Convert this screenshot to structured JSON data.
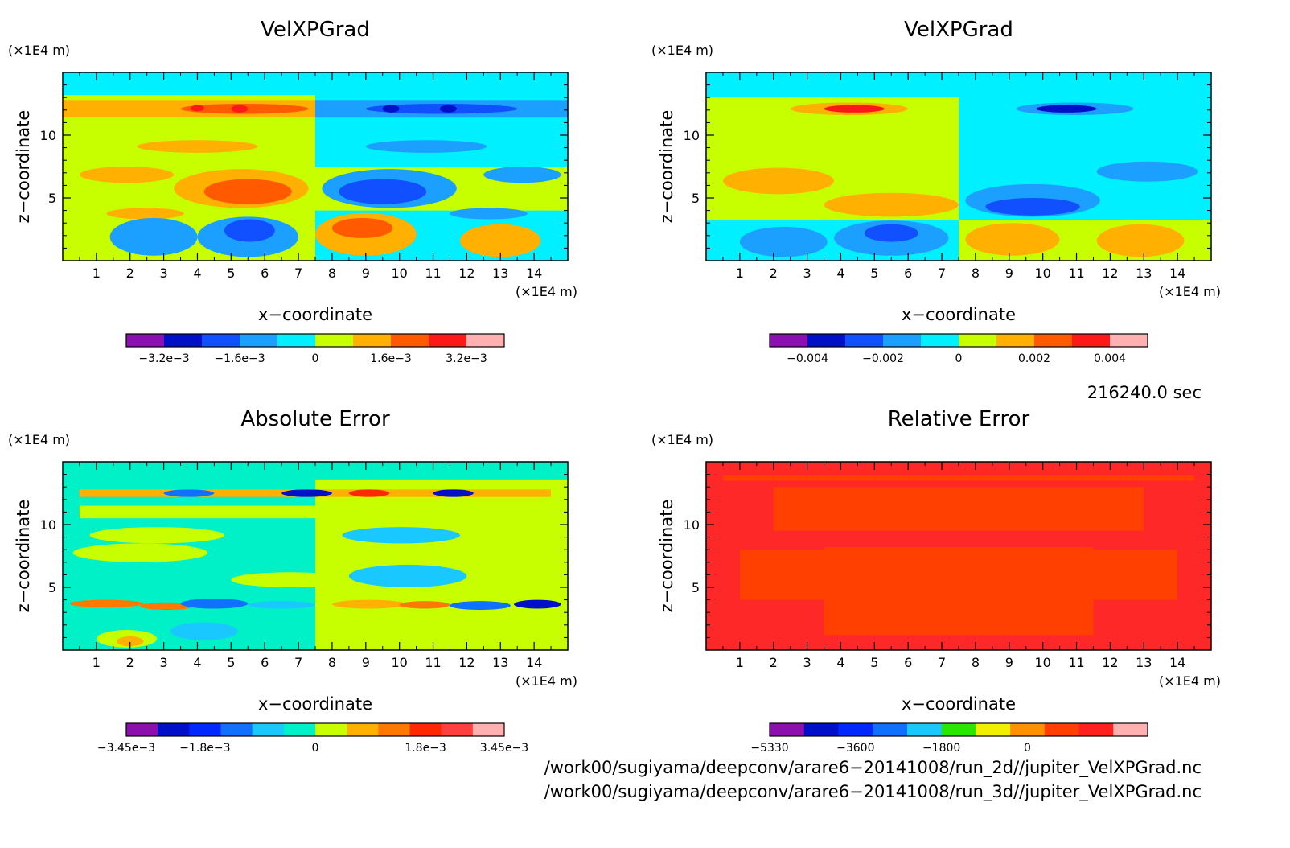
{
  "chart_data": [
    {
      "type": "heatmap",
      "title": "VelXPGrad",
      "xlabel": "x−coordinate",
      "ylabel": "z−coordinate",
      "x_unit": "(×1E4 m)",
      "y_unit": "(×1E4 m)",
      "xlim": [
        0,
        15
      ],
      "ylim": [
        0,
        15
      ],
      "x_ticks": [
        "1",
        "2",
        "3",
        "4",
        "5",
        "6",
        "7",
        "8",
        "9",
        "10",
        "11",
        "12",
        "13",
        "14"
      ],
      "y_ticks": [
        "5",
        "10"
      ],
      "colorbar_labels": [
        "−3.2e−3",
        "−1.6e−3",
        "0",
        "1.6e−3",
        "3.2e−3"
      ],
      "colorbar_colors": [
        "#8c10b0",
        "#0010c8",
        "#1050ff",
        "#1ca0ff",
        "#00f0ff",
        "#c8ff00",
        "#ffb000",
        "#ff5a00",
        "#ff1818",
        "#ffb0b0"
      ],
      "background": "#c8ff00",
      "blobs": [
        {
          "x": 0,
          "y": 7.5,
          "w": 7.5,
          "h": 7.5,
          "c": "#c8ff00"
        },
        {
          "x": 7.5,
          "y": 7.5,
          "w": 7.5,
          "h": 7.5,
          "c": "#00f0ff"
        },
        {
          "x": 0,
          "y": 0,
          "w": 7.5,
          "h": 4,
          "c": "#c8ff00"
        },
        {
          "x": 7.5,
          "y": 0,
          "w": 7.5,
          "h": 4,
          "c": "#00f0ff"
        },
        {
          "x": 0,
          "y": 13.2,
          "w": 15,
          "h": 1.8,
          "c": "#00f0ff"
        },
        {
          "x": 0,
          "y": 11.4,
          "w": 7.5,
          "h": 1.4,
          "c": "#ffb000"
        },
        {
          "x": 7.5,
          "y": 11.4,
          "w": 7.5,
          "h": 1.4,
          "c": "#1ca0ff"
        },
        {
          "x": 3.5,
          "y": 11.7,
          "w": 3.8,
          "h": 0.8,
          "c": "#ff5a00"
        },
        {
          "x": 9.0,
          "y": 11.7,
          "w": 4.5,
          "h": 0.8,
          "c": "#1050ff"
        },
        {
          "x": 3.8,
          "y": 11.9,
          "w": 0.4,
          "h": 0.5,
          "c": "#ff1818"
        },
        {
          "x": 5.0,
          "y": 11.8,
          "w": 0.5,
          "h": 0.6,
          "c": "#ff1818"
        },
        {
          "x": 9.5,
          "y": 11.8,
          "w": 0.5,
          "h": 0.6,
          "c": "#0010c8"
        },
        {
          "x": 11.2,
          "y": 11.8,
          "w": 0.5,
          "h": 0.6,
          "c": "#0010c8"
        },
        {
          "x": 2.2,
          "y": 8.6,
          "w": 3.6,
          "h": 1.0,
          "c": "#ffb000"
        },
        {
          "x": 9.0,
          "y": 8.6,
          "w": 3.6,
          "h": 1.0,
          "c": "#1ca0ff"
        },
        {
          "x": 0.5,
          "y": 6.2,
          "w": 2.8,
          "h": 1.3,
          "c": "#ffb000"
        },
        {
          "x": 12.5,
          "y": 6.2,
          "w": 2.3,
          "h": 1.3,
          "c": "#1ca0ff"
        },
        {
          "x": 3.3,
          "y": 4.2,
          "w": 4.0,
          "h": 3.1,
          "c": "#ffb000"
        },
        {
          "x": 7.7,
          "y": 4.2,
          "w": 4.0,
          "h": 3.1,
          "c": "#1ca0ff"
        },
        {
          "x": 4.2,
          "y": 4.5,
          "w": 2.6,
          "h": 2.0,
          "c": "#ff5a00"
        },
        {
          "x": 8.2,
          "y": 4.5,
          "w": 2.6,
          "h": 2.0,
          "c": "#1050ff"
        },
        {
          "x": 1.3,
          "y": 3.3,
          "w": 2.3,
          "h": 0.9,
          "c": "#ffb000"
        },
        {
          "x": 11.5,
          "y": 3.3,
          "w": 2.3,
          "h": 0.9,
          "c": "#1ca0ff"
        },
        {
          "x": 1.4,
          "y": 0.4,
          "w": 2.6,
          "h": 3.0,
          "c": "#1ca0ff"
        },
        {
          "x": 4.0,
          "y": 0.3,
          "w": 3.0,
          "h": 3.2,
          "c": "#1ca0ff"
        },
        {
          "x": 4.8,
          "y": 1.5,
          "w": 1.5,
          "h": 1.8,
          "c": "#1050ff"
        },
        {
          "x": 7.5,
          "y": 0.4,
          "w": 3.0,
          "h": 3.4,
          "c": "#ffb000"
        },
        {
          "x": 8.0,
          "y": 1.8,
          "w": 1.8,
          "h": 1.6,
          "c": "#ff5a00"
        },
        {
          "x": 11.8,
          "y": 0.3,
          "w": 2.4,
          "h": 2.6,
          "c": "#ffb000"
        }
      ]
    },
    {
      "type": "heatmap",
      "title": "VelXPGrad",
      "xlabel": "x−coordinate",
      "ylabel": "z−coordinate",
      "x_unit": "(×1E4 m)",
      "y_unit": "(×1E4 m)",
      "xlim": [
        0,
        15
      ],
      "ylim": [
        0,
        15
      ],
      "x_ticks": [
        "1",
        "2",
        "3",
        "4",
        "5",
        "6",
        "7",
        "8",
        "9",
        "10",
        "11",
        "12",
        "13",
        "14"
      ],
      "y_ticks": [
        "5",
        "10"
      ],
      "colorbar_labels": [
        "−0.004",
        "−0.002",
        "0",
        "0.002",
        "0.004"
      ],
      "colorbar_colors": [
        "#8c10b0",
        "#0010c8",
        "#1050ff",
        "#1ca0ff",
        "#00f0ff",
        "#c8ff00",
        "#ffb000",
        "#ff5a00",
        "#ff1818",
        "#ffb0b0"
      ],
      "background": "#c8ff00",
      "blobs": [
        {
          "x": 0,
          "y": 3.2,
          "w": 7.5,
          "h": 11.8,
          "c": "#c8ff00"
        },
        {
          "x": 7.5,
          "y": 3.2,
          "w": 7.5,
          "h": 11.8,
          "c": "#00f0ff"
        },
        {
          "x": 0,
          "y": 0,
          "w": 7.5,
          "h": 3.2,
          "c": "#00f0ff"
        },
        {
          "x": 7.5,
          "y": 0,
          "w": 7.5,
          "h": 3.2,
          "c": "#c8ff00"
        },
        {
          "x": 0,
          "y": 13.0,
          "w": 15,
          "h": 2.0,
          "c": "#00f0ff"
        },
        {
          "x": 2.5,
          "y": 11.6,
          "w": 3.5,
          "h": 1.0,
          "c": "#ffb000"
        },
        {
          "x": 9.2,
          "y": 11.6,
          "w": 3.5,
          "h": 1.0,
          "c": "#1ca0ff"
        },
        {
          "x": 3.5,
          "y": 11.8,
          "w": 1.8,
          "h": 0.6,
          "c": "#ff1818"
        },
        {
          "x": 9.8,
          "y": 11.8,
          "w": 1.8,
          "h": 0.6,
          "c": "#0010c8"
        },
        {
          "x": 0.5,
          "y": 5.3,
          "w": 3.3,
          "h": 2.1,
          "c": "#ffb000"
        },
        {
          "x": 11.6,
          "y": 6.3,
          "w": 3.0,
          "h": 1.6,
          "c": "#1ca0ff"
        },
        {
          "x": 3.5,
          "y": 3.5,
          "w": 4.0,
          "h": 1.9,
          "c": "#ffb000"
        },
        {
          "x": 7.7,
          "y": 3.5,
          "w": 4.0,
          "h": 2.6,
          "c": "#1ca0ff"
        },
        {
          "x": 8.3,
          "y": 3.6,
          "w": 2.8,
          "h": 1.4,
          "c": "#1050ff"
        },
        {
          "x": 1.0,
          "y": 0.3,
          "w": 2.6,
          "h": 2.4,
          "c": "#1ca0ff"
        },
        {
          "x": 3.8,
          "y": 0.4,
          "w": 3.4,
          "h": 2.8,
          "c": "#1ca0ff"
        },
        {
          "x": 4.7,
          "y": 1.5,
          "w": 1.6,
          "h": 1.4,
          "c": "#1050ff"
        },
        {
          "x": 7.7,
          "y": 0.4,
          "w": 2.8,
          "h": 2.6,
          "c": "#ffb000"
        },
        {
          "x": 11.6,
          "y": 0.3,
          "w": 2.6,
          "h": 2.6,
          "c": "#ffb000"
        }
      ]
    },
    {
      "type": "heatmap",
      "title": "Absolute Error",
      "xlabel": "x−coordinate",
      "ylabel": "z−coordinate",
      "x_unit": "(×1E4 m)",
      "y_unit": "(×1E4 m)",
      "xlim": [
        0,
        15
      ],
      "ylim": [
        0,
        15
      ],
      "x_ticks": [
        "1",
        "2",
        "3",
        "4",
        "5",
        "6",
        "7",
        "8",
        "9",
        "10",
        "11",
        "12",
        "13",
        "14"
      ],
      "y_ticks": [
        "5",
        "10"
      ],
      "colorbar_labels": [
        "−3.45e−3",
        "−1.8e−3",
        "0",
        "1.8e−3",
        "3.45e−3"
      ],
      "colorbar_colors": [
        "#8c10b0",
        "#0010c8",
        "#0028ff",
        "#1070ff",
        "#18c8ff",
        "#00f0c8",
        "#c8ff00",
        "#ffb000",
        "#ff7800",
        "#ff2800",
        "#ff4040",
        "#ffb0b0"
      ],
      "background": "#00f0c8",
      "blobs": [
        {
          "x": 0,
          "y": 0,
          "w": 7.5,
          "h": 15,
          "c": "#00f0c8"
        },
        {
          "x": 7.5,
          "y": 0,
          "w": 7.5,
          "h": 15,
          "c": "#c8ff00"
        },
        {
          "x": 0,
          "y": 13.6,
          "w": 15,
          "h": 1.4,
          "c": "#00f0c8"
        },
        {
          "x": 0.5,
          "y": 10.5,
          "w": 14,
          "h": 1.0,
          "c": "#c8ff00"
        },
        {
          "x": 0.3,
          "y": 7.0,
          "w": 4.0,
          "h": 1.5,
          "c": "#c8ff00"
        },
        {
          "x": 5.0,
          "y": 5.0,
          "w": 3.5,
          "h": 1.2,
          "c": "#c8ff00"
        },
        {
          "x": 8.5,
          "y": 5.0,
          "w": 3.5,
          "h": 1.8,
          "c": "#18c8ff"
        },
        {
          "x": 0.8,
          "y": 8.5,
          "w": 4.0,
          "h": 1.3,
          "c": "#c8ff00"
        },
        {
          "x": 8.3,
          "y": 8.5,
          "w": 3.5,
          "h": 1.3,
          "c": "#18c8ff"
        },
        {
          "x": 0.5,
          "y": 12.2,
          "w": 14,
          "h": 0.6,
          "c": "#ffb000"
        },
        {
          "x": 3.0,
          "y": 12.2,
          "w": 1.5,
          "h": 0.6,
          "c": "#1070ff"
        },
        {
          "x": 6.5,
          "y": 12.2,
          "w": 1.5,
          "h": 0.6,
          "c": "#0010c8"
        },
        {
          "x": 8.5,
          "y": 12.2,
          "w": 1.2,
          "h": 0.6,
          "c": "#ff2800"
        },
        {
          "x": 11.0,
          "y": 12.2,
          "w": 1.2,
          "h": 0.6,
          "c": "#0010c8"
        },
        {
          "x": 0.2,
          "y": 3.4,
          "w": 2.2,
          "h": 0.6,
          "c": "#ff7800"
        },
        {
          "x": 2.3,
          "y": 3.2,
          "w": 1.6,
          "h": 0.6,
          "c": "#ff7800"
        },
        {
          "x": 3.5,
          "y": 3.3,
          "w": 2.0,
          "h": 0.8,
          "c": "#1070ff"
        },
        {
          "x": 5.5,
          "y": 3.3,
          "w": 2.0,
          "h": 0.6,
          "c": "#18c8ff"
        },
        {
          "x": 8.0,
          "y": 3.3,
          "w": 2.2,
          "h": 0.7,
          "c": "#ffb000"
        },
        {
          "x": 10.0,
          "y": 3.3,
          "w": 1.5,
          "h": 0.6,
          "c": "#ff7800"
        },
        {
          "x": 11.5,
          "y": 3.2,
          "w": 1.8,
          "h": 0.7,
          "c": "#1070ff"
        },
        {
          "x": 13.4,
          "y": 3.3,
          "w": 1.4,
          "h": 0.7,
          "c": "#0010c8"
        },
        {
          "x": 1.0,
          "y": 0.2,
          "w": 1.8,
          "h": 1.4,
          "c": "#c8ff00"
        },
        {
          "x": 1.6,
          "y": 0.3,
          "w": 0.8,
          "h": 0.8,
          "c": "#ffb000"
        },
        {
          "x": 12.0,
          "y": 0.3,
          "w": 2.0,
          "h": 1.6,
          "c": "#c8ff00"
        },
        {
          "x": 3.2,
          "y": 0.8,
          "w": 2.0,
          "h": 1.4,
          "c": "#18c8ff"
        }
      ]
    },
    {
      "type": "heatmap",
      "title": "Relative Error",
      "xlabel": "x−coordinate",
      "ylabel": "z−coordinate",
      "x_unit": "(×1E4 m)",
      "y_unit": "(×1E4 m)",
      "xlim": [
        0,
        15
      ],
      "ylim": [
        0,
        15
      ],
      "x_ticks": [
        "1",
        "2",
        "3",
        "4",
        "5",
        "6",
        "7",
        "8",
        "9",
        "10",
        "11",
        "12",
        "13",
        "14"
      ],
      "y_ticks": [
        "5",
        "10"
      ],
      "colorbar_labels": [
        "−5330",
        "−3600",
        "−1800",
        "0"
      ],
      "colorbar_colors": [
        "#8c10b0",
        "#0010c8",
        "#0028ff",
        "#1070ff",
        "#18c8ff",
        "#28e800",
        "#f0f000",
        "#ff9000",
        "#ff4000",
        "#ff2020",
        "#ffb0b0"
      ],
      "background": "#ff2828",
      "blobs": [
        {
          "x": 3.5,
          "y": 1.2,
          "w": 8.0,
          "h": 7.0,
          "c": "#ff4000"
        },
        {
          "x": 1.0,
          "y": 4.0,
          "w": 13.0,
          "h": 4.0,
          "c": "#ff4000"
        },
        {
          "x": 2.0,
          "y": 9.5,
          "w": 11.0,
          "h": 3.5,
          "c": "#ff4000"
        },
        {
          "x": 0.5,
          "y": 13.5,
          "w": 14.0,
          "h": 0.4,
          "c": "#ff4000"
        }
      ]
    }
  ],
  "timestamp": "216240.0 sec",
  "footer": {
    "path1": "/work00/sugiyama/deepconv/arare6−20141008/run_2d//jupiter_VelXPGrad.nc",
    "path2": "/work00/sugiyama/deepconv/arare6−20141008/run_3d//jupiter_VelXPGrad.nc"
  }
}
